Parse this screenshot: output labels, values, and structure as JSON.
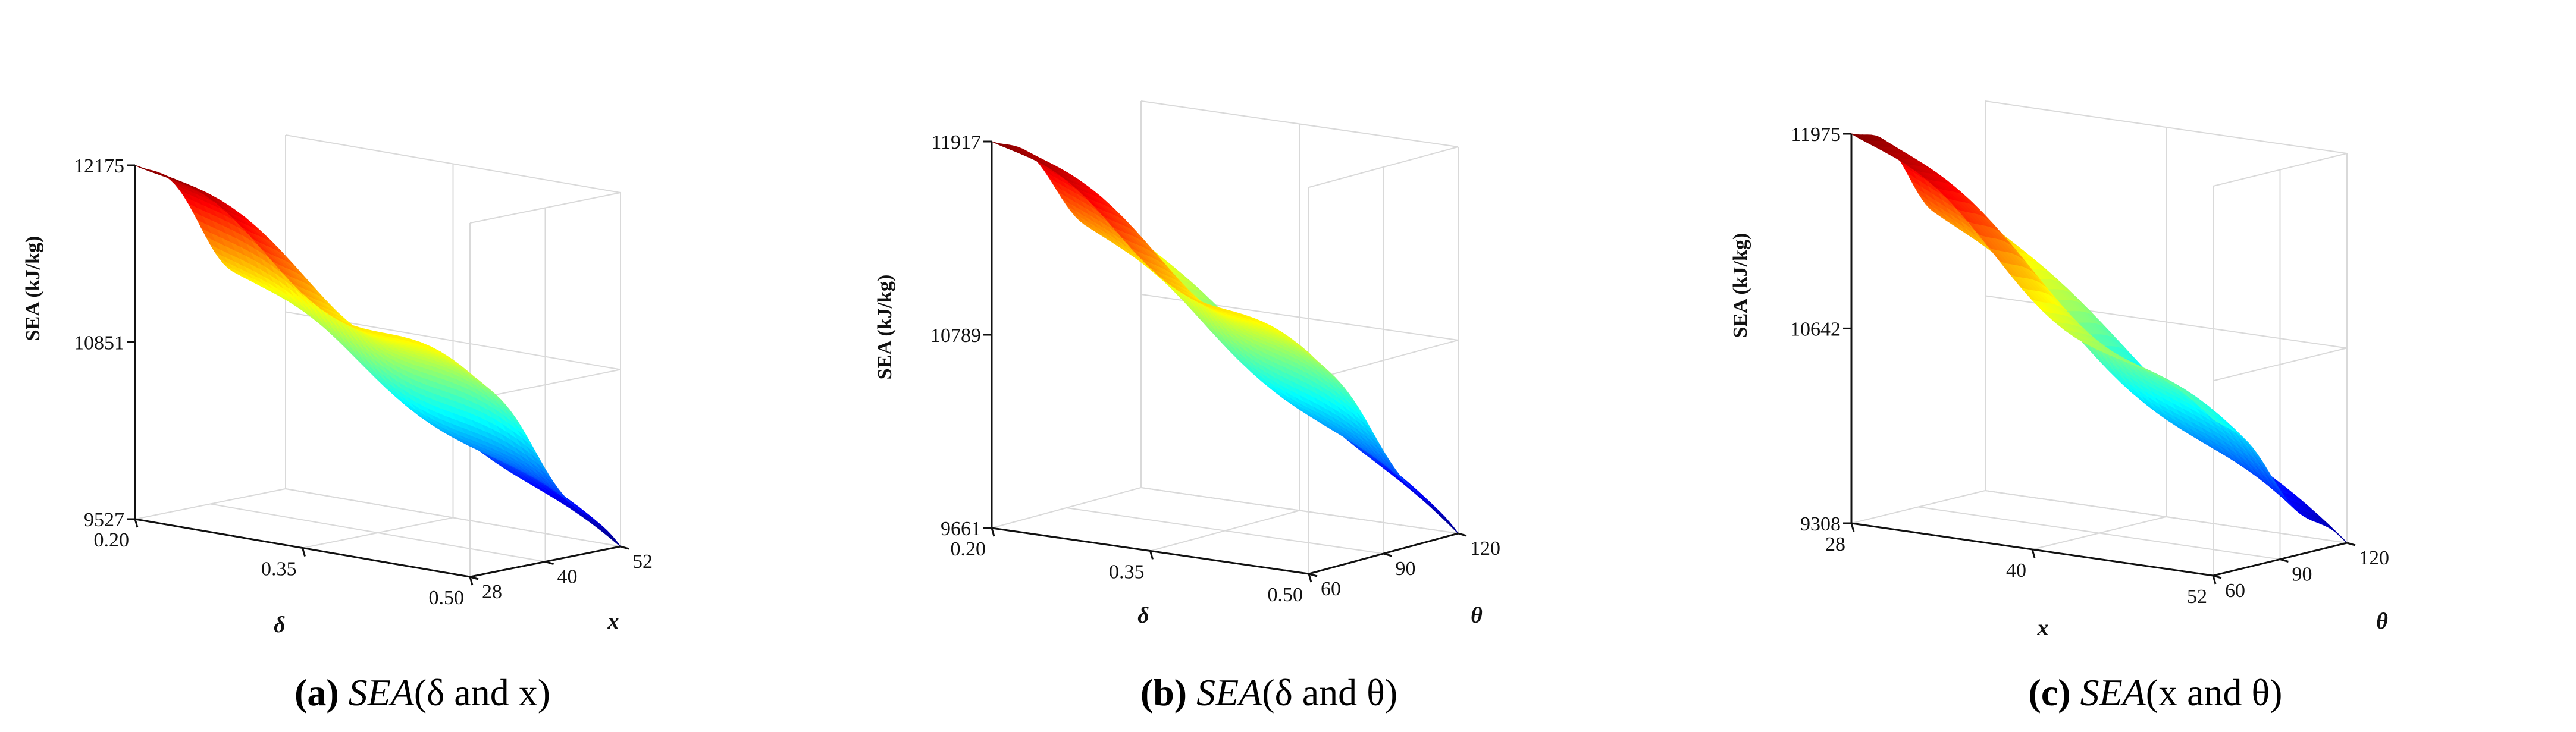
{
  "chart_data": [
    {
      "type": "surface",
      "panel_letter": "(a)",
      "caption_func": "SEA",
      "caption_args": "δ and x",
      "zlabel": "SEA (kJ/kg)",
      "xname": "δ",
      "yname": "x",
      "x_ticks": [
        "0.20",
        "0.35",
        "0.50"
      ],
      "x_values": [
        0.2,
        0.35,
        0.5
      ],
      "y_ticks": [
        "28",
        "40",
        "52"
      ],
      "y_values": [
        28,
        40,
        52
      ],
      "z_ticks": [
        "9527",
        "10851",
        "12175"
      ],
      "z_values": [
        9527,
        10851,
        12175
      ],
      "xlim": [
        0.2,
        0.5
      ],
      "ylim": [
        28,
        52
      ],
      "zlim": [
        9527,
        12175
      ],
      "corner_values": {
        "x_min_y_min": 12175,
        "x_max_y_min": 11050,
        "x_min_y_max": 11000,
        "x_max_y_max": 9527
      },
      "colormap": "jet"
    },
    {
      "type": "surface",
      "panel_letter": "(b)",
      "caption_func": "SEA",
      "caption_args": "δ and θ",
      "zlabel": "SEA (kJ/kg)",
      "xname": "δ",
      "yname": "θ",
      "x_ticks": [
        "0.20",
        "0.35",
        "0.50"
      ],
      "x_values": [
        0.2,
        0.35,
        0.5
      ],
      "y_ticks": [
        "60",
        "90",
        "120"
      ],
      "y_values": [
        60,
        90,
        120
      ],
      "z_ticks": [
        "9661",
        "10789",
        "11917"
      ],
      "z_values": [
        9661,
        10789,
        11917
      ],
      "xlim": [
        0.2,
        0.5
      ],
      "ylim": [
        60,
        120
      ],
      "zlim": [
        9661,
        11917
      ],
      "corner_values": {
        "x_min_y_min": 11917,
        "x_max_y_min": 10950,
        "x_min_y_max": 11100,
        "x_max_y_max": 9661
      },
      "colormap": "jet"
    },
    {
      "type": "surface",
      "panel_letter": "(c)",
      "caption_func": "SEA",
      "caption_args": "x and θ",
      "zlabel": "SEA (kJ/kg)",
      "xname": "x",
      "yname": "θ",
      "x_ticks": [
        "28",
        "40",
        "52"
      ],
      "x_values": [
        28,
        40,
        52
      ],
      "y_ticks": [
        "60",
        "90",
        "120"
      ],
      "y_values": [
        60,
        90,
        120
      ],
      "z_ticks": [
        "9308",
        "10642",
        "11975"
      ],
      "z_values": [
        9308,
        10642,
        11975
      ],
      "xlim": [
        28,
        52
      ],
      "ylim": [
        60,
        120
      ],
      "zlim": [
        9308,
        11975
      ],
      "corner_values": {
        "x_min_y_min": 11975,
        "x_max_y_min": 10380,
        "x_min_y_max": 11150,
        "x_max_y_max": 9308
      },
      "colormap": "jet"
    }
  ]
}
